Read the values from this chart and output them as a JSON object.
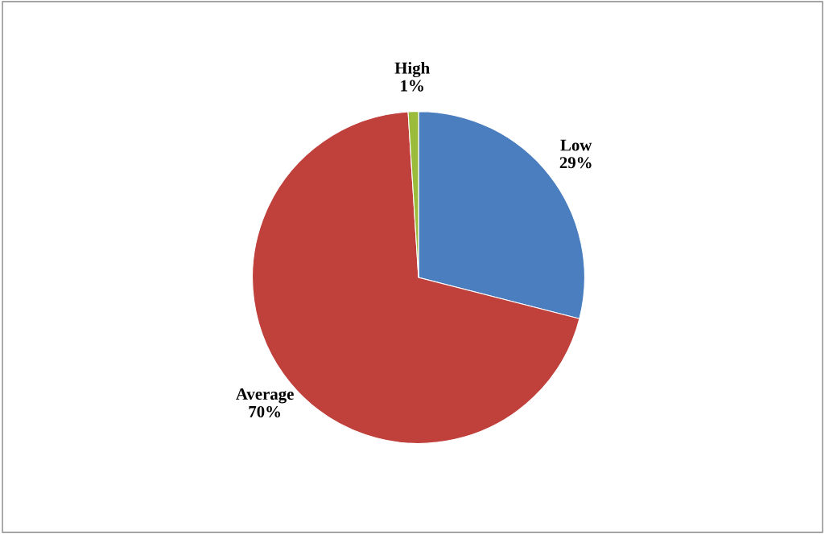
{
  "chart_data": {
    "type": "pie",
    "categories": [
      "Low",
      "Average",
      "High"
    ],
    "values": [
      29,
      70,
      1
    ],
    "colors": [
      "#4a7ebf",
      "#c0403c",
      "#9bbb3b"
    ],
    "value_labels": [
      "29%",
      "70%",
      "1%"
    ]
  }
}
